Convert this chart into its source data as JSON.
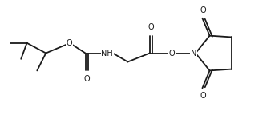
{
  "bg_color": "#ffffff",
  "line_color": "#1a1a1a",
  "line_width": 1.3,
  "font_size": 7.0,
  "fig_width": 3.48,
  "fig_height": 1.44,
  "dpi": 100,
  "xlim": [
    0.0,
    9.5
  ],
  "ylim": [
    0.5,
    4.2
  ]
}
